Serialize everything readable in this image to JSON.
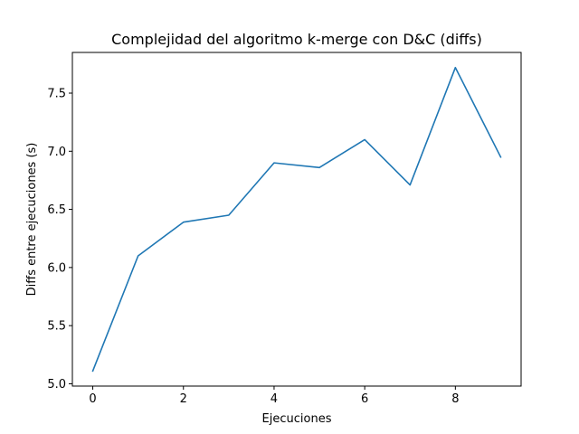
{
  "chart_data": {
    "type": "line",
    "title": "Complejidad del algoritmo k-merge con D&C (diffs)",
    "xlabel": "Ejecuciones",
    "ylabel": "Diffs entre ejecuciones (s)",
    "x": [
      0,
      1,
      2,
      3,
      4,
      5,
      6,
      7,
      8,
      9
    ],
    "series": [
      {
        "color": "#1f77b4",
        "values": [
          5.11,
          6.1,
          6.39,
          6.45,
          6.9,
          6.86,
          7.1,
          6.71,
          7.72,
          6.95
        ]
      }
    ],
    "xlim": [
      -0.45,
      9.45
    ],
    "ylim": [
      4.98,
      7.85
    ],
    "xticks": [
      0,
      2,
      4,
      6,
      8
    ],
    "xtick_labels": [
      "0",
      "2",
      "4",
      "6",
      "8"
    ],
    "yticks": [
      5.0,
      5.5,
      6.0,
      6.5,
      7.0,
      7.5
    ],
    "ytick_labels": [
      "5.0",
      "5.5",
      "6.0",
      "6.5",
      "7.0",
      "7.5"
    ],
    "grid": false,
    "legend": "none"
  }
}
